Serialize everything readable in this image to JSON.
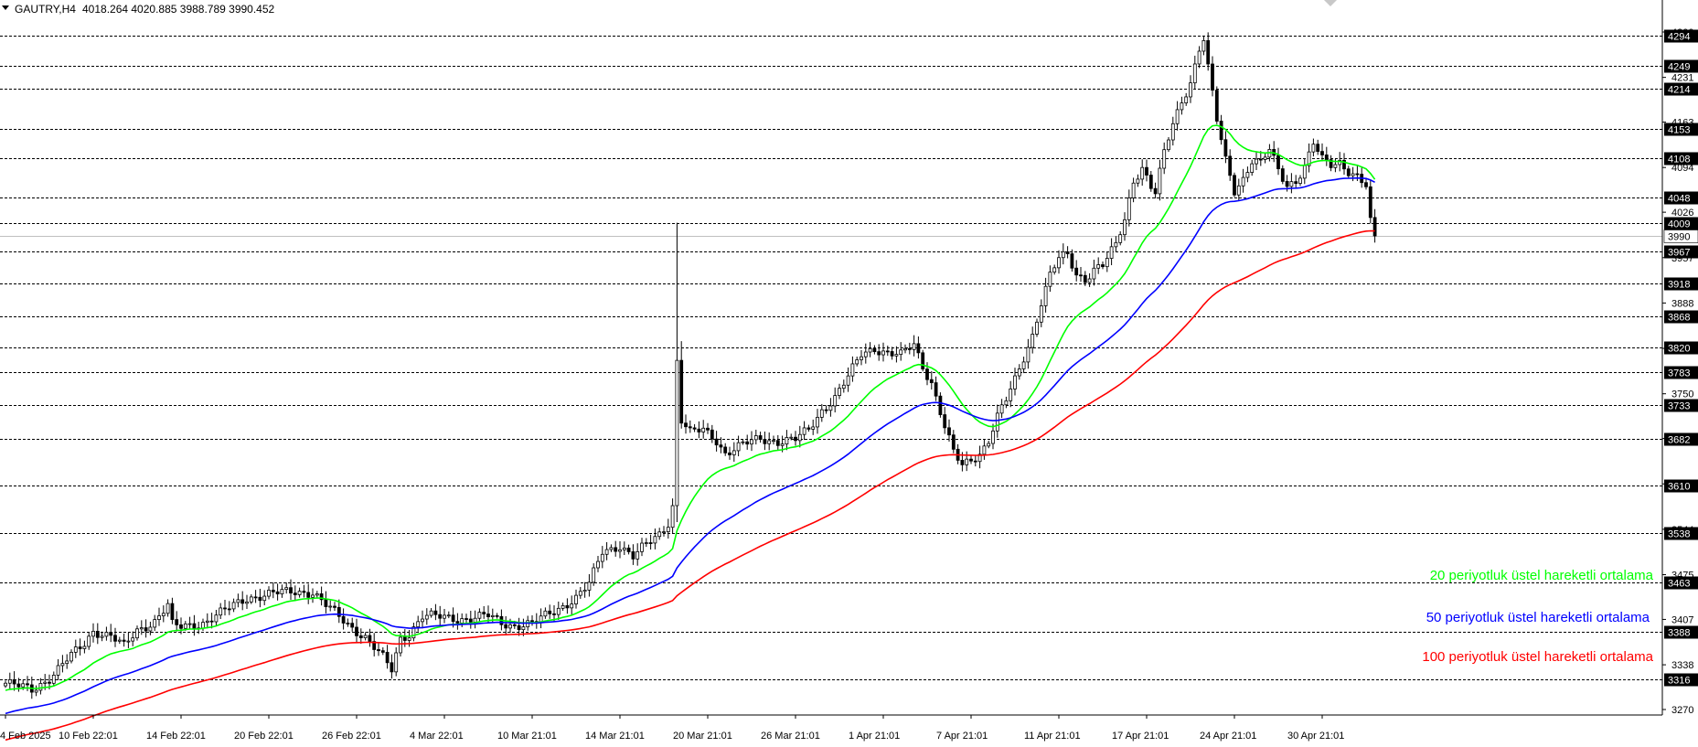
{
  "header": {
    "symbol": "GAUTRY,H4",
    "ohlc": "4018.264 4020.885 3988.789 3990.452"
  },
  "chart_data": {
    "type": "candlestick",
    "title": "GAUTRY,H4",
    "ylim": [
      3240,
      4325
    ],
    "y_ticks": [
      3270,
      3338,
      3407,
      3475,
      3544,
      3613,
      3682,
      3750,
      3819,
      3888,
      3957,
      4026,
      4094,
      4163,
      4231,
      4300
    ],
    "x_ticks": [
      "4 Feb 2025",
      "10 Feb 22:01",
      "14 Feb 22:01",
      "20 Feb 22:01",
      "26 Feb 22:01",
      "4 Mar 22:01",
      "10 Mar 21:01",
      "14 Mar 21:01",
      "20 Mar 21:01",
      "26 Mar 21:01",
      "1 Apr 21:01",
      "7 Apr 21:01",
      "11 Apr 21:01",
      "17 Apr 21:01",
      "24 Apr 21:01",
      "30 Apr 21:01"
    ],
    "x_tick_index": [
      0,
      20,
      40,
      60,
      80,
      100,
      120,
      140,
      160,
      180,
      200,
      220,
      240,
      260,
      280,
      300
    ],
    "levels": [
      "4294",
      "4249",
      "4214",
      "4153",
      "4108",
      "4048",
      "4009",
      "3967",
      "3918",
      "3868",
      "3820",
      "3783",
      "3733",
      "3682",
      "3610",
      "3538",
      "3463",
      "3388",
      "3316"
    ],
    "current_price": "3990",
    "close_series": [
      [
        0,
        3310
      ],
      [
        6,
        3300
      ],
      [
        10,
        3318
      ],
      [
        14,
        3345
      ],
      [
        18,
        3370
      ],
      [
        20,
        3390
      ],
      [
        24,
        3382
      ],
      [
        27,
        3365
      ],
      [
        30,
        3390
      ],
      [
        34,
        3405
      ],
      [
        37,
        3428
      ],
      [
        38,
        3398
      ],
      [
        40,
        3395
      ],
      [
        45,
        3402
      ],
      [
        50,
        3420
      ],
      [
        55,
        3440
      ],
      [
        60,
        3445
      ],
      [
        66,
        3450
      ],
      [
        70,
        3448
      ],
      [
        73,
        3428
      ],
      [
        78,
        3400
      ],
      [
        82,
        3380
      ],
      [
        86,
        3348
      ],
      [
        88,
        3330
      ],
      [
        90,
        3378
      ],
      [
        92,
        3386
      ],
      [
        95,
        3412
      ],
      [
        100,
        3410
      ],
      [
        105,
        3408
      ],
      [
        110,
        3412
      ],
      [
        113,
        3402
      ],
      [
        116,
        3398
      ],
      [
        120,
        3400
      ],
      [
        125,
        3420
      ],
      [
        130,
        3440
      ],
      [
        133,
        3460
      ],
      [
        136,
        3510
      ],
      [
        140,
        3520
      ],
      [
        143,
        3502
      ],
      [
        146,
        3520
      ],
      [
        149,
        3537
      ],
      [
        151,
        3555
      ],
      [
        152,
        3580
      ],
      [
        153,
        3800
      ],
      [
        154,
        3710
      ],
      [
        156,
        3690
      ],
      [
        159,
        3695
      ],
      [
        162,
        3680
      ],
      [
        164,
        3660
      ],
      [
        168,
        3672
      ],
      [
        172,
        3682
      ],
      [
        176,
        3678
      ],
      [
        180,
        3680
      ],
      [
        183,
        3695
      ],
      [
        186,
        3725
      ],
      [
        189,
        3745
      ],
      [
        192,
        3775
      ],
      [
        195,
        3810
      ],
      [
        198,
        3820
      ],
      [
        201,
        3812
      ],
      [
        204,
        3808
      ],
      [
        207,
        3825
      ],
      [
        209,
        3792
      ],
      [
        211,
        3768
      ],
      [
        214,
        3700
      ],
      [
        216,
        3660
      ],
      [
        218,
        3640
      ],
      [
        220,
        3650
      ],
      [
        222,
        3660
      ],
      [
        224,
        3680
      ],
      [
        226,
        3715
      ],
      [
        228,
        3740
      ],
      [
        230,
        3770
      ],
      [
        232,
        3805
      ],
      [
        234,
        3840
      ],
      [
        236,
        3890
      ],
      [
        238,
        3930
      ],
      [
        240,
        3955
      ],
      [
        242,
        3960
      ],
      [
        244,
        3932
      ],
      [
        246,
        3925
      ],
      [
        248,
        3940
      ],
      [
        250,
        3945
      ],
      [
        253,
        3975
      ],
      [
        255,
        4015
      ],
      [
        257,
        4075
      ],
      [
        259,
        4095
      ],
      [
        261,
        4065
      ],
      [
        262,
        4055
      ],
      [
        264,
        4115
      ],
      [
        266,
        4160
      ],
      [
        268,
        4195
      ],
      [
        270,
        4225
      ],
      [
        272,
        4275
      ],
      [
        273,
        4290
      ],
      [
        274,
        4245
      ],
      [
        276,
        4165
      ],
      [
        278,
        4105
      ],
      [
        280,
        4060
      ],
      [
        282,
        4078
      ],
      [
        284,
        4105
      ],
      [
        286,
        4100
      ],
      [
        288,
        4120
      ],
      [
        290,
        4090
      ],
      [
        292,
        4068
      ],
      [
        294,
        4075
      ],
      [
        296,
        4095
      ],
      [
        298,
        4130
      ],
      [
        300,
        4105
      ],
      [
        302,
        4098
      ],
      [
        304,
        4103
      ],
      [
        306,
        4090
      ],
      [
        308,
        4080
      ],
      [
        310,
        4065
      ],
      [
        311,
        4018
      ],
      [
        312,
        3990
      ]
    ],
    "series": [
      {
        "name": "20 periyotluk üstel hareketli ortalama",
        "color": "#00ff00",
        "period": 20
      },
      {
        "name": "50 periyotluk üstel hareketli ortalama",
        "color": "#0000ff",
        "period": 50
      },
      {
        "name": "100 periyotluk üstel hareketli ortalama",
        "color": "#ff0000",
        "period": 100
      }
    ],
    "ema_seed": {
      "ema20": 3298,
      "ema50": 3262,
      "ema100": 3222
    }
  },
  "colors": {
    "grid": "#000000",
    "axis": "#000000",
    "level_badge": "#000000",
    "current_line": "#c0c0c0",
    "candle": "#000000"
  }
}
